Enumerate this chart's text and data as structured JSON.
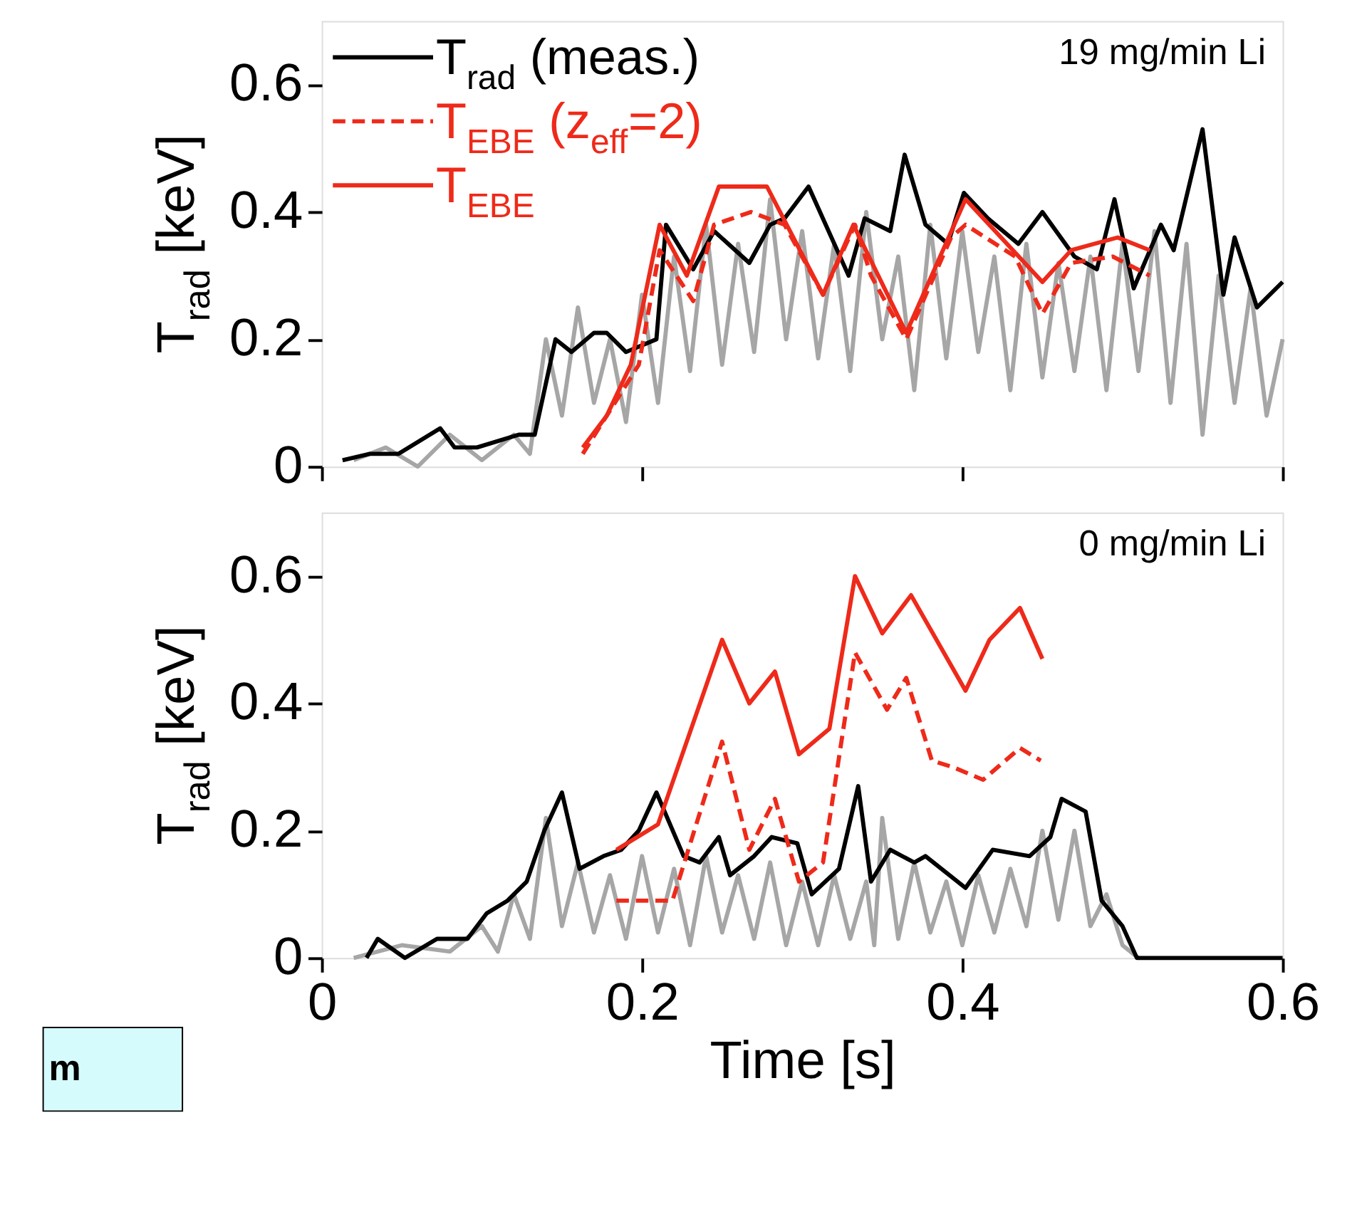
{
  "chart_data": [
    {
      "type": "line",
      "ylabel": "T$_{rad}$ [keV]",
      "xlim": [
        0,
        0.6
      ],
      "xticks": [
        0,
        0.2,
        0.4,
        0.6
      ],
      "ylim": [
        0,
        0.7
      ],
      "yticks": [
        0,
        0.2,
        0.4,
        0.6
      ],
      "tick_labels": "y",
      "legend": "top left",
      "annotations": [
        "19 mg/min Li"
      ],
      "series": [
        {
          "color": "#a6a6a6",
          "line_style": "solid",
          "x": [
            0.02,
            0.04,
            0.06,
            0.08,
            0.1,
            0.12,
            0.13,
            0.14,
            0.15,
            0.16,
            0.17,
            0.18,
            0.19,
            0.2,
            0.21,
            0.22,
            0.23,
            0.24,
            0.25,
            0.26,
            0.27,
            0.28,
            0.29,
            0.3,
            0.31,
            0.32,
            0.33,
            0.34,
            0.35,
            0.36,
            0.37,
            0.38,
            0.39,
            0.4,
            0.41,
            0.42,
            0.43,
            0.44,
            0.45,
            0.46,
            0.47,
            0.48,
            0.49,
            0.5,
            0.51,
            0.52,
            0.53,
            0.54,
            0.55,
            0.56,
            0.57,
            0.58,
            0.59,
            0.6
          ],
          "values": [
            0.01,
            0.03,
            0.0,
            0.05,
            0.01,
            0.05,
            0.02,
            0.2,
            0.08,
            0.25,
            0.1,
            0.2,
            0.07,
            0.27,
            0.1,
            0.33,
            0.15,
            0.38,
            0.16,
            0.35,
            0.18,
            0.42,
            0.2,
            0.37,
            0.17,
            0.35,
            0.15,
            0.4,
            0.2,
            0.33,
            0.12,
            0.38,
            0.17,
            0.37,
            0.18,
            0.33,
            0.12,
            0.35,
            0.14,
            0.32,
            0.15,
            0.33,
            0.12,
            0.35,
            0.15,
            0.37,
            0.1,
            0.35,
            0.05,
            0.3,
            0.1,
            0.28,
            0.08,
            0.2
          ]
        },
        {
          "name": "T$_{rad}$ (meas.)",
          "color": "#000000",
          "line_style": "solid",
          "x": [
            0.013,
            0.03,
            0.048,
            0.074,
            0.083,
            0.097,
            0.123,
            0.133,
            0.146,
            0.156,
            0.17,
            0.178,
            0.19,
            0.209,
            0.215,
            0.232,
            0.245,
            0.267,
            0.28,
            0.289,
            0.304,
            0.329,
            0.339,
            0.355,
            0.364,
            0.377,
            0.391,
            0.401,
            0.416,
            0.435,
            0.45,
            0.47,
            0.484,
            0.495,
            0.507,
            0.524,
            0.532,
            0.55,
            0.563,
            0.57,
            0.584,
            0.6
          ],
          "values": [
            0.01,
            0.02,
            0.02,
            0.06,
            0.03,
            0.03,
            0.05,
            0.05,
            0.2,
            0.18,
            0.21,
            0.21,
            0.18,
            0.2,
            0.38,
            0.31,
            0.37,
            0.32,
            0.38,
            0.39,
            0.44,
            0.3,
            0.39,
            0.37,
            0.49,
            0.38,
            0.35,
            0.43,
            0.39,
            0.35,
            0.4,
            0.33,
            0.31,
            0.42,
            0.28,
            0.38,
            0.34,
            0.53,
            0.27,
            0.36,
            0.25,
            0.29
          ]
        },
        {
          "name": "T$_{EBE}$ (z$_{eff}$=2)",
          "color": "#ee2a1a",
          "line_style": "dashed",
          "x": [
            0.163,
            0.198,
            0.211,
            0.232,
            0.245,
            0.268,
            0.289,
            0.313,
            0.333,
            0.343,
            0.365,
            0.393,
            0.402,
            0.433,
            0.45,
            0.468,
            0.494,
            0.517
          ],
          "values": [
            0.02,
            0.16,
            0.34,
            0.26,
            0.38,
            0.4,
            0.38,
            0.27,
            0.38,
            0.3,
            0.2,
            0.36,
            0.38,
            0.33,
            0.24,
            0.32,
            0.33,
            0.3
          ]
        },
        {
          "name": "T$_{EBE}$",
          "color": "#ee2a1a",
          "line_style": "solid",
          "x": [
            0.163,
            0.178,
            0.193,
            0.211,
            0.228,
            0.248,
            0.278,
            0.313,
            0.332,
            0.365,
            0.402,
            0.45,
            0.468,
            0.497,
            0.517
          ],
          "values": [
            0.03,
            0.08,
            0.16,
            0.38,
            0.3,
            0.44,
            0.44,
            0.27,
            0.38,
            0.21,
            0.42,
            0.29,
            0.34,
            0.36,
            0.34
          ]
        }
      ]
    },
    {
      "type": "line",
      "ylabel": "T$_{rad}$ [keV]",
      "xlabel": "Time [s]",
      "xlim": [
        0,
        0.6
      ],
      "xticks": [
        0,
        0.2,
        0.4,
        0.6
      ],
      "ylim": [
        0,
        0.7
      ],
      "yticks": [
        0,
        0.2,
        0.4,
        0.6
      ],
      "annotations": [
        "0 mg/min Li",
        "m"
      ],
      "series": [
        {
          "color": "#a6a6a6",
          "line_style": "solid",
          "x": [
            0.02,
            0.05,
            0.08,
            0.1,
            0.11,
            0.12,
            0.13,
            0.14,
            0.15,
            0.16,
            0.17,
            0.18,
            0.19,
            0.2,
            0.21,
            0.22,
            0.23,
            0.24,
            0.25,
            0.26,
            0.27,
            0.28,
            0.29,
            0.3,
            0.31,
            0.32,
            0.33,
            0.34,
            0.345,
            0.35,
            0.36,
            0.37,
            0.38,
            0.39,
            0.4,
            0.41,
            0.42,
            0.43,
            0.44,
            0.45,
            0.46,
            0.47,
            0.48,
            0.49,
            0.5,
            0.51
          ],
          "values": [
            0.0,
            0.02,
            0.01,
            0.05,
            0.01,
            0.1,
            0.03,
            0.22,
            0.05,
            0.15,
            0.04,
            0.13,
            0.03,
            0.16,
            0.04,
            0.14,
            0.02,
            0.16,
            0.04,
            0.13,
            0.03,
            0.15,
            0.02,
            0.12,
            0.02,
            0.13,
            0.03,
            0.12,
            0.02,
            0.22,
            0.03,
            0.15,
            0.04,
            0.12,
            0.02,
            0.13,
            0.04,
            0.14,
            0.05,
            0.2,
            0.06,
            0.2,
            0.05,
            0.1,
            0.02,
            0.0
          ]
        },
        {
          "color": "#000000",
          "line_style": "solid",
          "x": [
            0.028,
            0.035,
            0.052,
            0.072,
            0.091,
            0.103,
            0.116,
            0.128,
            0.139,
            0.15,
            0.161,
            0.176,
            0.187,
            0.198,
            0.209,
            0.226,
            0.236,
            0.248,
            0.255,
            0.27,
            0.281,
            0.297,
            0.306,
            0.323,
            0.335,
            0.343,
            0.355,
            0.37,
            0.377,
            0.402,
            0.419,
            0.442,
            0.455,
            0.462,
            0.477,
            0.487,
            0.5,
            0.509,
            0.52,
            0.6
          ],
          "values": [
            0.0,
            0.03,
            0.0,
            0.03,
            0.03,
            0.07,
            0.09,
            0.12,
            0.2,
            0.26,
            0.14,
            0.16,
            0.17,
            0.2,
            0.26,
            0.16,
            0.15,
            0.19,
            0.13,
            0.16,
            0.19,
            0.18,
            0.1,
            0.14,
            0.27,
            0.12,
            0.17,
            0.15,
            0.16,
            0.11,
            0.17,
            0.16,
            0.19,
            0.25,
            0.23,
            0.09,
            0.05,
            0.0,
            0.0,
            0.0
          ]
        },
        {
          "color": "#ee2a1a",
          "line_style": "dashed",
          "x": [
            0.184,
            0.219,
            0.25,
            0.255,
            0.267,
            0.283,
            0.298,
            0.313,
            0.333,
            0.353,
            0.365,
            0.381,
            0.394,
            0.413,
            0.436,
            0.449
          ],
          "values": [
            0.09,
            0.09,
            0.34,
            0.29,
            0.17,
            0.25,
            0.12,
            0.15,
            0.48,
            0.39,
            0.44,
            0.31,
            0.3,
            0.28,
            0.33,
            0.31
          ]
        },
        {
          "color": "#ee2a1a",
          "line_style": "solid",
          "x": [
            0.184,
            0.21,
            0.25,
            0.267,
            0.283,
            0.298,
            0.317,
            0.333,
            0.35,
            0.368,
            0.402,
            0.417,
            0.436,
            0.45
          ],
          "values": [
            0.17,
            0.21,
            0.5,
            0.4,
            0.45,
            0.32,
            0.36,
            0.6,
            0.51,
            0.57,
            0.42,
            0.5,
            0.55,
            0.47
          ]
        }
      ]
    }
  ]
}
